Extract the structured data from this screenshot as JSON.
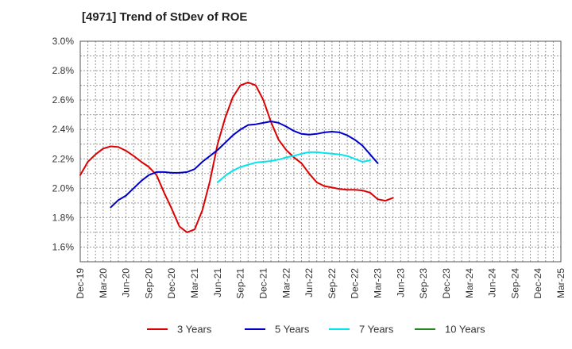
{
  "chart_data": {
    "type": "line",
    "title": "[4971]  Trend of StDev of ROE",
    "xlabel": "",
    "ylabel": "",
    "x_ticks": [
      "Dec-19",
      "Mar-20",
      "Jun-20",
      "Sep-20",
      "Dec-20",
      "Mar-21",
      "Jun-21",
      "Sep-21",
      "Dec-21",
      "Mar-22",
      "Jun-22",
      "Sep-22",
      "Dec-22",
      "Mar-23",
      "Jun-23",
      "Sep-23",
      "Dec-23",
      "Mar-24",
      "Jun-24",
      "Sep-24",
      "Dec-24",
      "Mar-25"
    ],
    "y_ticks": [
      "1.6%",
      "1.8%",
      "2.0%",
      "2.2%",
      "2.4%",
      "2.6%",
      "2.8%",
      "3.0%"
    ],
    "ylim": [
      1.5,
      3.0
    ],
    "grid": true,
    "legend_position": "bottom",
    "series": [
      {
        "name": "3 Years",
        "color": "#dd0000",
        "points": [
          [
            0,
            2.09
          ],
          [
            1,
            2.18
          ],
          [
            2,
            2.23
          ],
          [
            3,
            2.27
          ],
          [
            4,
            2.285
          ],
          [
            5,
            2.28
          ],
          [
            6,
            2.255
          ],
          [
            7,
            2.22
          ],
          [
            8,
            2.18
          ],
          [
            9,
            2.145
          ],
          [
            10,
            2.09
          ],
          [
            11,
            1.97
          ],
          [
            12,
            1.86
          ],
          [
            13,
            1.74
          ],
          [
            14,
            1.7
          ],
          [
            15,
            1.72
          ],
          [
            16,
            1.85
          ],
          [
            17,
            2.05
          ],
          [
            18,
            2.3
          ],
          [
            19,
            2.48
          ],
          [
            20,
            2.62
          ],
          [
            21,
            2.7
          ],
          [
            22,
            2.72
          ],
          [
            23,
            2.7
          ],
          [
            24,
            2.6
          ],
          [
            25,
            2.45
          ],
          [
            26,
            2.33
          ],
          [
            27,
            2.26
          ],
          [
            28,
            2.21
          ],
          [
            29,
            2.17
          ],
          [
            30,
            2.1
          ],
          [
            31,
            2.04
          ],
          [
            32,
            2.015
          ],
          [
            33,
            2.005
          ],
          [
            34,
            1.995
          ],
          [
            35,
            1.99
          ],
          [
            36,
            1.99
          ],
          [
            37,
            1.985
          ],
          [
            38,
            1.97
          ],
          [
            39,
            1.925
          ],
          [
            40,
            1.915
          ],
          [
            41,
            1.935
          ]
        ]
      },
      {
        "name": "5 Years",
        "color": "#0000cc",
        "points": [
          [
            4,
            1.87
          ],
          [
            5,
            1.92
          ],
          [
            6,
            1.95
          ],
          [
            7,
            2.0
          ],
          [
            8,
            2.05
          ],
          [
            9,
            2.09
          ],
          [
            10,
            2.11
          ],
          [
            11,
            2.11
          ],
          [
            12,
            2.105
          ],
          [
            13,
            2.105
          ],
          [
            14,
            2.11
          ],
          [
            15,
            2.13
          ],
          [
            16,
            2.18
          ],
          [
            17,
            2.22
          ],
          [
            18,
            2.26
          ],
          [
            19,
            2.31
          ],
          [
            20,
            2.36
          ],
          [
            21,
            2.4
          ],
          [
            22,
            2.43
          ],
          [
            23,
            2.435
          ],
          [
            24,
            2.445
          ],
          [
            25,
            2.455
          ],
          [
            26,
            2.445
          ],
          [
            27,
            2.42
          ],
          [
            28,
            2.39
          ],
          [
            29,
            2.37
          ],
          [
            30,
            2.365
          ],
          [
            31,
            2.37
          ],
          [
            32,
            2.38
          ],
          [
            33,
            2.385
          ],
          [
            34,
            2.38
          ],
          [
            35,
            2.36
          ],
          [
            36,
            2.33
          ],
          [
            37,
            2.29
          ],
          [
            38,
            2.23
          ],
          [
            39,
            2.17
          ]
        ]
      },
      {
        "name": "7 Years",
        "color": "#00e5ee",
        "points": [
          [
            18,
            2.04
          ],
          [
            19,
            2.085
          ],
          [
            20,
            2.12
          ],
          [
            21,
            2.145
          ],
          [
            22,
            2.16
          ],
          [
            23,
            2.175
          ],
          [
            24,
            2.18
          ],
          [
            25,
            2.185
          ],
          [
            26,
            2.195
          ],
          [
            27,
            2.21
          ],
          [
            28,
            2.22
          ],
          [
            29,
            2.235
          ],
          [
            30,
            2.245
          ],
          [
            31,
            2.245
          ],
          [
            32,
            2.24
          ],
          [
            33,
            2.235
          ],
          [
            34,
            2.23
          ],
          [
            35,
            2.22
          ],
          [
            36,
            2.2
          ],
          [
            37,
            2.18
          ],
          [
            38,
            2.19
          ]
        ]
      },
      {
        "name": "10 Years",
        "color": "#228822",
        "points": []
      }
    ]
  }
}
